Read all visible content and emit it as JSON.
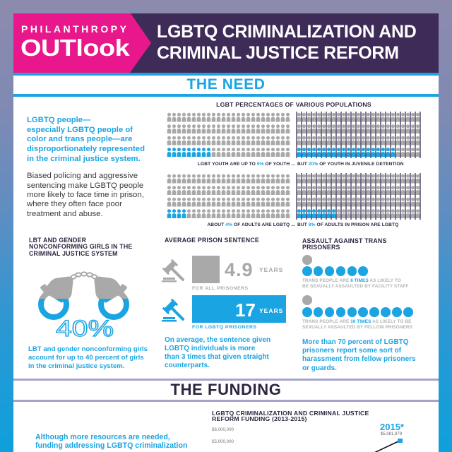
{
  "colors": {
    "accent": "#1ba4e2",
    "neutral": "#a9a9a9",
    "bars": "#3b2c57",
    "brand_pink": "#e8178c",
    "header_purple": "#3e2b58",
    "divider_lavender": "#a7a1cd",
    "heading_dark": "#2e2540"
  },
  "header": {
    "brand_top": "PHILANTHROPY",
    "brand_main": "OUTlook",
    "title_line1": "LGBTQ CRIMINALIZATION AND",
    "title_line2": "CRIMINAL JUSTICE REFORM"
  },
  "need": {
    "section_title": "THE NEED",
    "intro_highlight": [
      "LGBTQ people—",
      "especially LGBTQ people of",
      "color and trans people—are",
      "disproportionately represented",
      "in the criminal justice system."
    ],
    "intro_body": [
      "Biased policing and aggressive",
      "sentencing make LGBTQ people",
      "more likely to face time in prison,",
      "where they often face poor",
      "treatment and abuse."
    ],
    "populations": {
      "title": "LGBT PERCENTAGES OF VARIOUS POPULATIONS",
      "rows": [
        {
          "general": {
            "cells": 100,
            "columns": 25,
            "highlighted": 9,
            "bars": false
          },
          "incarcerated": {
            "cells": 100,
            "columns": 25,
            "highlighted": 20,
            "bars": true
          },
          "caption_left_pre": "LGBT YOUTH ARE UP TO ",
          "caption_left_value": "9%",
          "caption_left_post": " OF YOUTH ...",
          "caption_right_pre": "BUT ",
          "caption_right_value": "20%",
          "caption_right_post": " OF YOUTH IN JUVENILE DETENTION"
        },
        {
          "general": {
            "cells": 100,
            "columns": 25,
            "highlighted": 4,
            "bars": false
          },
          "incarcerated": {
            "cells": 100,
            "columns": 25,
            "highlighted": 8,
            "bars": true
          },
          "caption_left_pre": "ABOUT ",
          "caption_left_value": "4%",
          "caption_left_post": " OF ADULTS ARE LGBTQ ...",
          "caption_right_pre": "BUT ",
          "caption_right_value": "8%",
          "caption_right_post": " OF ADULTS IN PRISON ARE LGBTQ"
        }
      ]
    }
  },
  "girls": {
    "title": [
      "LBT AND GENDER",
      "NONCONFORMING GIRLS IN THE",
      "CRIMINAL JUSTICE SYSTEM"
    ],
    "stat": "40%",
    "body": [
      "LBT and gender nonconforming girls",
      "account for up to 40 percent of girls",
      "in the criminal justice system."
    ]
  },
  "sentence": {
    "title": "AVERAGE PRISON SENTENCE",
    "all": {
      "value": "4.9",
      "unit": "YEARS",
      "label": "FOR ALL PRISONERS"
    },
    "lgbtq": {
      "value": "17",
      "unit": "YEARS",
      "label": "FOR LGBTQ PRISONERS"
    },
    "body": [
      "On average, the sentence given",
      "LGBTQ individuals is more",
      "than 3 times that given straight",
      "counterparts."
    ]
  },
  "assault": {
    "title": [
      "ASSAULT AGAINST TRANS",
      "PRISONERS"
    ],
    "items": [
      {
        "multiple": 6,
        "caption_pre": "TRANS PEOPLE ARE ",
        "caption_value": "6 TIMES",
        "caption_post": " AS LIKELY TO",
        "caption_line2": "BE SEXUALLY ASSAULTED BY FACILITY STAFF"
      },
      {
        "multiple": 10,
        "caption_pre": "TRANS PEOPLE ARE ",
        "caption_value": "10 TIMES",
        "caption_post": " AS LIKELY TO BE",
        "caption_line2": "SEXUALLY ASSAULTED BY FELLOW PRISONERS"
      }
    ],
    "body": [
      "More than 70 percent of LGBTQ",
      "prisoners report some sort of",
      "harassment from fellow prisoners",
      "or guards."
    ]
  },
  "funding": {
    "section_title": "THE FUNDING",
    "body": [
      "Although more resources are needed,",
      "funding addressing LGBTQ criminalization"
    ],
    "chart": {
      "title": [
        "LGBTQ CRIMINALIZATION AND CRIMINAL JUSTICE",
        "REFORM FUNDING (2013-2015)"
      ],
      "y_ticks": [
        "$6,000,000",
        "$5,000,000"
      ],
      "point_label": "2015*",
      "point_value": "$5,081,979"
    }
  },
  "chart_data": [
    {
      "type": "pictogram",
      "title": "LGBT PERCENTAGES OF VARIOUS POPULATIONS",
      "unit": "percent (of 100 icons)",
      "categories": [
        "Youth",
        "Youth in juvenile detention",
        "Adults",
        "Adults in prison"
      ],
      "values": [
        9,
        20,
        4,
        8
      ],
      "annotations": [
        "LGBT YOUTH ARE UP TO 9% OF YOUTH ... BUT 20% OF YOUTH IN JUVENILE DETENTION",
        "ABOUT 4% OF ADULTS ARE LGBTQ ... BUT 8% OF ADULTS IN PRISON ARE LGBTQ"
      ]
    },
    {
      "type": "pictogram",
      "title": "LBT AND GENDER NONCONFORMING GIRLS IN THE CRIMINAL JUSTICE SYSTEM",
      "categories": [
        "Share of girls in criminal justice system"
      ],
      "values": [
        40
      ],
      "unit": "percent"
    },
    {
      "type": "bar",
      "title": "AVERAGE PRISON SENTENCE",
      "categories": [
        "FOR ALL PRISONERS",
        "FOR LGBTQ PRISONERS"
      ],
      "values": [
        4.9,
        17
      ],
      "ylabel": "YEARS"
    },
    {
      "type": "pictogram",
      "title": "ASSAULT AGAINST TRANS PRISONERS",
      "categories": [
        "Sexually assaulted by facility staff",
        "Sexually assaulted by fellow prisoners"
      ],
      "baseline": [
        1,
        1
      ],
      "values": [
        6,
        10
      ],
      "unit": "times as likely"
    },
    {
      "type": "line",
      "title": "LGBTQ CRIMINALIZATION AND CRIMINAL JUSTICE REFORM FUNDING (2013-2015)",
      "x": [
        "2015*"
      ],
      "values": [
        5081979
      ],
      "y_tick_labels": [
        "$6,000,000",
        "$5,000,000"
      ],
      "ylim_visible": [
        5000000,
        6000000
      ],
      "annotations": [
        "2015*",
        "$5,081,979"
      ]
    }
  ]
}
